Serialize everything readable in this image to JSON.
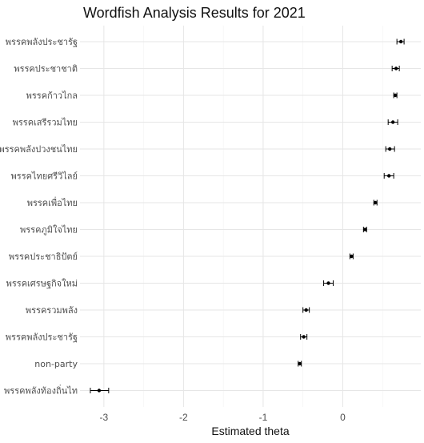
{
  "chart_data": {
    "type": "scatter",
    "title": "Wordfish Analysis Results for 2021",
    "xlabel": "Estimated theta",
    "ylabel": "",
    "xlim": [
      -3.3,
      0.98
    ],
    "x_ticks": [
      -3,
      -2,
      -1,
      0
    ],
    "x_tick_labels": [
      "-3",
      "-2",
      "-1",
      "0"
    ],
    "grid": true,
    "categories": [
      "พรรคพลังประชารัฐ",
      "พรรคประชาชาติ",
      "พรรคก้าวไกล",
      "พรรคเสรีรวมไทย",
      "พรรคพลังปวงชนไทย",
      "พรรคไทยศรีวิไลย์",
      "พรรคเพื่อไทย",
      "พรรคภูมิใจไทย",
      "พรรคประชาธิปัตย์",
      "พรรคเศรษฐกิจใหม่",
      "พรรครวมพลัง",
      "พรรคพลังประชารัฐ",
      "non-party",
      "พรรคพลังท้องถิ่นไท"
    ],
    "series": [
      {
        "values": [
          0.73,
          0.67,
          0.66,
          0.63,
          0.59,
          0.58,
          0.41,
          0.28,
          0.11,
          -0.18,
          -0.46,
          -0.49,
          -0.54,
          -3.06
        ],
        "ci_low": [
          0.68,
          0.62,
          0.64,
          0.57,
          0.54,
          0.52,
          0.39,
          0.26,
          0.09,
          -0.24,
          -0.5,
          -0.53,
          -0.56,
          -3.17
        ],
        "ci_high": [
          0.77,
          0.71,
          0.68,
          0.69,
          0.65,
          0.64,
          0.43,
          0.3,
          0.13,
          -0.12,
          -0.42,
          -0.45,
          -0.52,
          -2.94
        ]
      }
    ]
  }
}
